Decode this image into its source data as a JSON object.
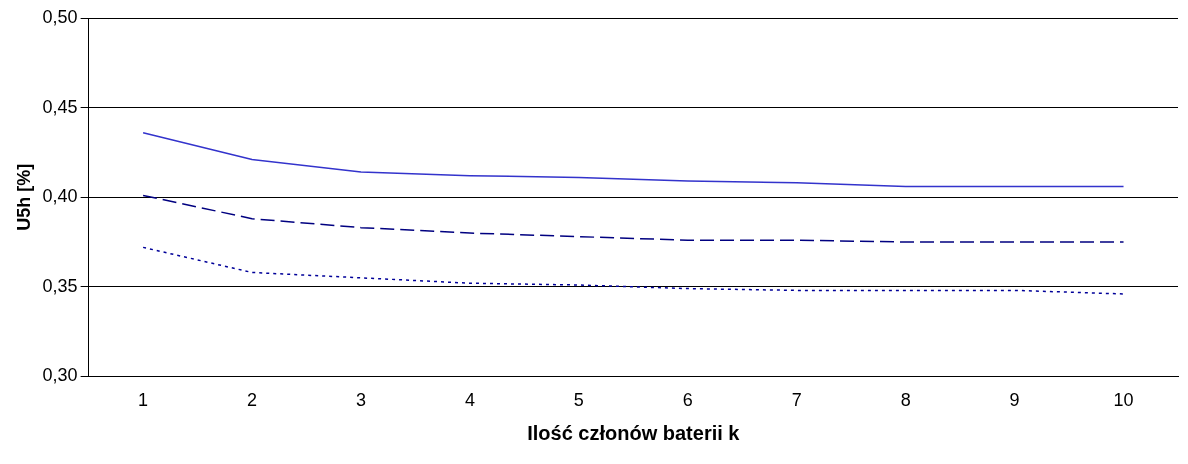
{
  "chart_data": {
    "type": "line",
    "xlabel": "Ilość członów baterii k",
    "ylabel": "U5h [%]",
    "categories": [
      "1",
      "2",
      "3",
      "4",
      "5",
      "6",
      "7",
      "8",
      "9",
      "10"
    ],
    "series": [
      {
        "color": "#3333cc",
        "line_style": "solid",
        "values": [
          0.436,
          0.421,
          0.414,
          0.412,
          0.411,
          0.409,
          0.408,
          0.406,
          0.406,
          0.406
        ]
      },
      {
        "color": "#000080",
        "line_style": "dashed",
        "values": [
          0.401,
          0.388,
          0.383,
          0.38,
          0.378,
          0.376,
          0.376,
          0.375,
          0.375,
          0.375
        ]
      },
      {
        "color": "#000099",
        "line_style": "dotted",
        "values": [
          0.372,
          0.358,
          0.355,
          0.352,
          0.351,
          0.349,
          0.348,
          0.348,
          0.348,
          0.346
        ]
      }
    ],
    "ylim": [
      0.3,
      0.5
    ],
    "yticks": [
      {
        "value": 0.3,
        "label": "0,30"
      },
      {
        "value": 0.35,
        "label": "0,35"
      },
      {
        "value": 0.4,
        "label": "0,40"
      },
      {
        "value": 0.45,
        "label": "0,45"
      },
      {
        "value": 0.5,
        "label": "0,50"
      }
    ],
    "grid": "y",
    "legend": false,
    "marker": "none"
  }
}
